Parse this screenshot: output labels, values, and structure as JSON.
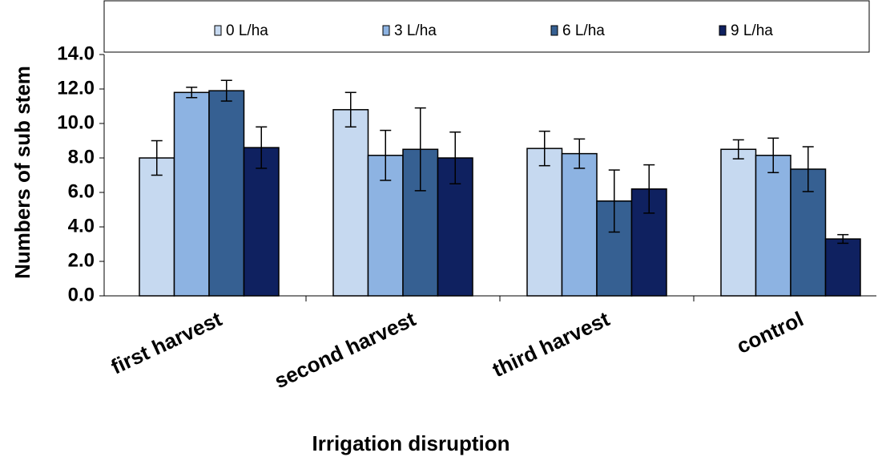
{
  "chart_data": {
    "type": "bar",
    "xlabel": "Irrigation disruption",
    "ylabel": "Numbers of sub stem",
    "categories": [
      "first harvest",
      "second harvest",
      "third harvest",
      "control"
    ],
    "series": [
      {
        "name": "0 L/ha",
        "color": "#c6d9f0",
        "values": [
          8.0,
          10.8,
          8.55,
          8.5
        ],
        "errors": [
          1.0,
          1.0,
          1.0,
          0.55
        ]
      },
      {
        "name": "3 L/ha",
        "color": "#8db3e2",
        "values": [
          11.8,
          8.15,
          8.25,
          8.15
        ],
        "errors": [
          0.3,
          1.45,
          0.85,
          1.0
        ]
      },
      {
        "name": "6 L/ha",
        "color": "#366092",
        "values": [
          11.9,
          8.5,
          5.5,
          7.35
        ],
        "errors": [
          0.6,
          2.4,
          1.8,
          1.3
        ]
      },
      {
        "name": "9 L/ha",
        "color": "#0f2160",
        "values": [
          8.6,
          8.0,
          6.2,
          3.3
        ],
        "errors": [
          1.2,
          1.5,
          1.4,
          0.25
        ]
      }
    ],
    "ylim": [
      0,
      14
    ],
    "yticks": [
      {
        "value": 0,
        "label": "0.0"
      },
      {
        "value": 2,
        "label": "2.0"
      },
      {
        "value": 4,
        "label": "4.0"
      },
      {
        "value": 6,
        "label": "6.0"
      },
      {
        "value": 8,
        "label": "8.0"
      },
      {
        "value": 10,
        "label": "10.0"
      },
      {
        "value": 12,
        "label": "12.0"
      },
      {
        "value": 14,
        "label": "14.0"
      }
    ],
    "legend": "top"
  }
}
